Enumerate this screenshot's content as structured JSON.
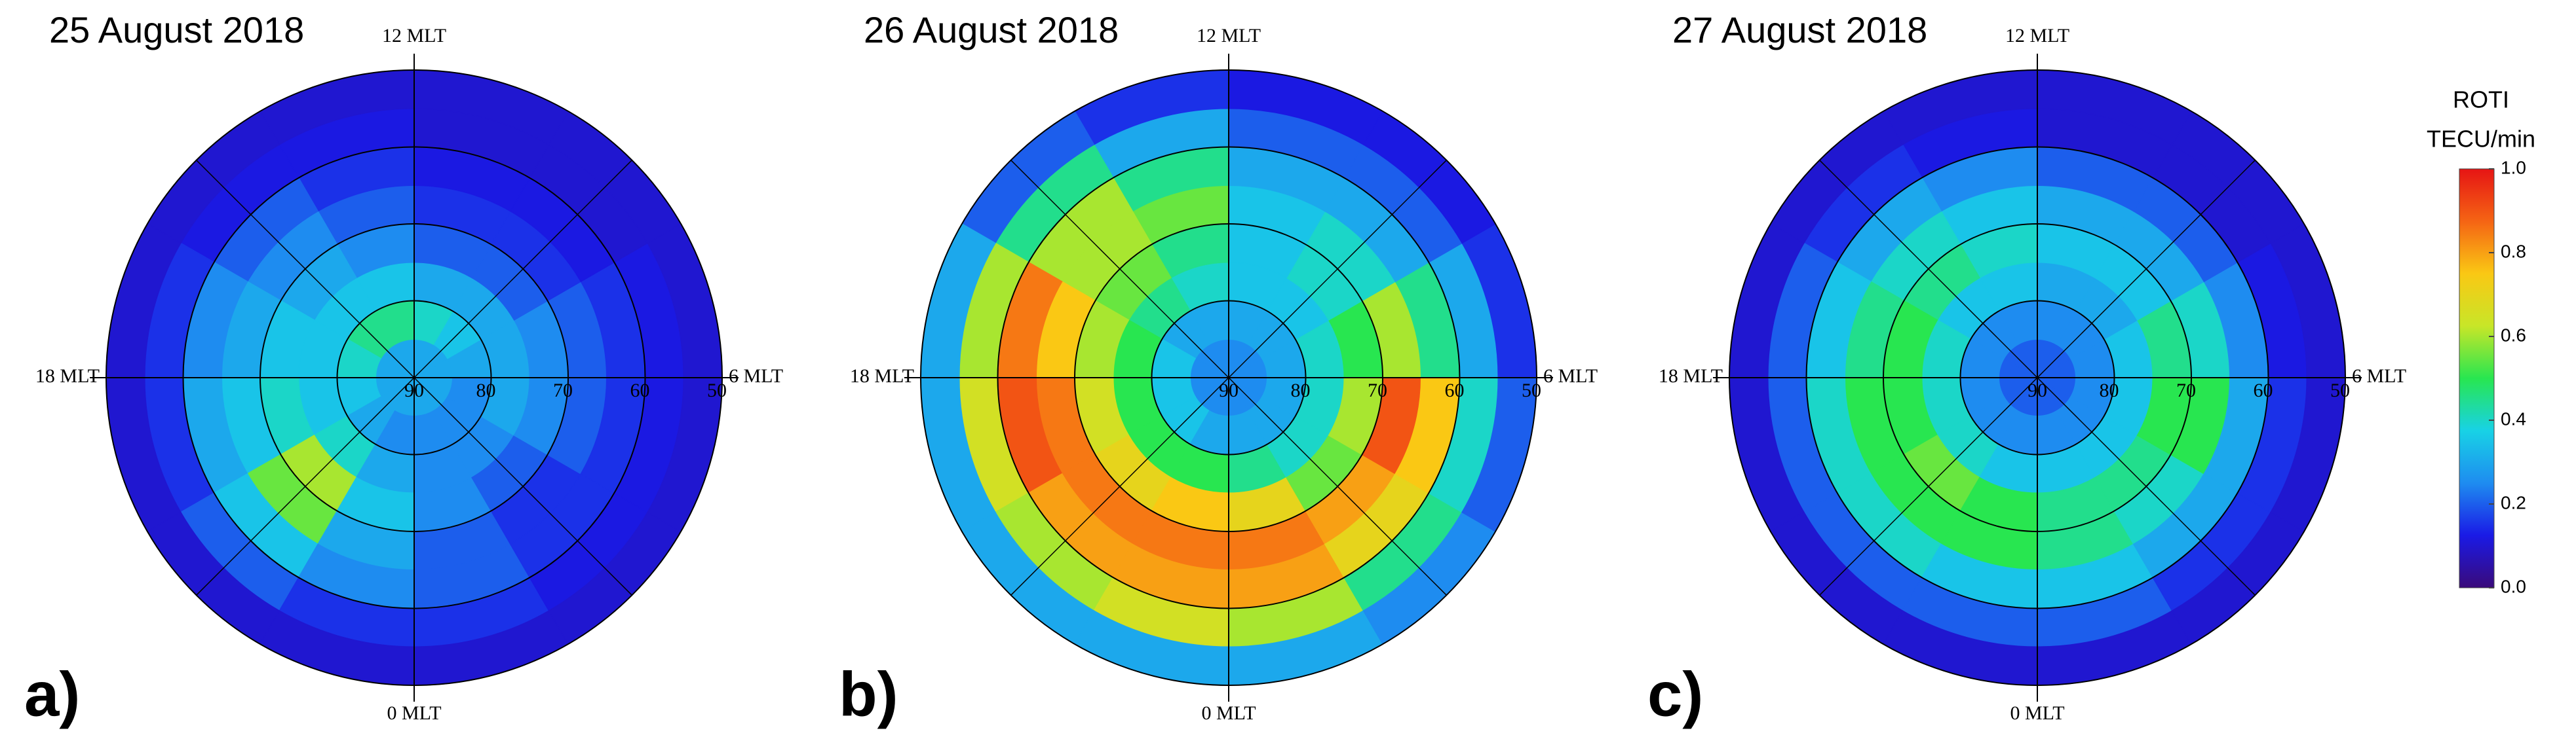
{
  "chart_data": [
    {
      "type": "polar-heatmap",
      "title": "25 August 2018",
      "label": "a)",
      "rlim": [
        90,
        50
      ],
      "rticks": [
        90,
        80,
        70,
        60,
        50
      ],
      "thetaticks": [
        {
          "value": 0,
          "label": "0 MLT"
        },
        {
          "value": 6,
          "label": "6 MLT"
        },
        {
          "value": 12,
          "label": "12 MLT"
        },
        {
          "value": 18,
          "label": "18 MLT"
        }
      ],
      "lat_bins": [
        90,
        85,
        80,
        75,
        70,
        65,
        60,
        55,
        50
      ],
      "mlt_bins": [
        0,
        2,
        4,
        6,
        8,
        10,
        12,
        14,
        16,
        18,
        20,
        22,
        24
      ],
      "values": [
        [
          0.3,
          0.3,
          0.3,
          0.3,
          0.3,
          0.3,
          0.3,
          0.3,
          0.3,
          0.3,
          0.3,
          0.3
        ],
        [
          0.25,
          0.25,
          0.25,
          0.3,
          0.35,
          0.4,
          0.45,
          0.45,
          0.4,
          0.35,
          0.3,
          0.25
        ],
        [
          0.25,
          0.25,
          0.3,
          0.3,
          0.3,
          0.3,
          0.35,
          0.35,
          0.35,
          0.35,
          0.4,
          0.3
        ],
        [
          0.25,
          0.2,
          0.25,
          0.25,
          0.2,
          0.2,
          0.25,
          0.3,
          0.35,
          0.4,
          0.6,
          0.35
        ],
        [
          0.2,
          0.15,
          0.2,
          0.2,
          0.15,
          0.15,
          0.2,
          0.25,
          0.3,
          0.35,
          0.55,
          0.3
        ],
        [
          0.2,
          0.15,
          0.15,
          0.15,
          0.12,
          0.12,
          0.15,
          0.2,
          0.25,
          0.3,
          0.35,
          0.25
        ],
        [
          0.15,
          0.12,
          0.12,
          0.12,
          0.1,
          0.1,
          0.12,
          0.12,
          0.15,
          0.15,
          0.2,
          0.15
        ],
        [
          0.1,
          0.1,
          0.1,
          0.1,
          0.1,
          0.1,
          0.1,
          0.1,
          0.1,
          0.1,
          0.1,
          0.1
        ]
      ]
    },
    {
      "type": "polar-heatmap",
      "title": "26 August 2018",
      "label": "b)",
      "rlim": [
        90,
        50
      ],
      "rticks": [
        90,
        80,
        70,
        60,
        50
      ],
      "thetaticks": [
        {
          "value": 0,
          "label": "0 MLT"
        },
        {
          "value": 6,
          "label": "6 MLT"
        },
        {
          "value": 12,
          "label": "12 MLT"
        },
        {
          "value": 18,
          "label": "18 MLT"
        }
      ],
      "lat_bins": [
        90,
        85,
        80,
        75,
        70,
        65,
        60,
        55,
        50
      ],
      "mlt_bins": [
        0,
        2,
        4,
        6,
        8,
        10,
        12,
        14,
        16,
        18,
        20,
        22,
        24
      ],
      "values": [
        [
          0.25,
          0.25,
          0.25,
          0.25,
          0.25,
          0.25,
          0.25,
          0.25,
          0.25,
          0.25,
          0.25,
          0.25
        ],
        [
          0.3,
          0.3,
          0.3,
          0.3,
          0.3,
          0.3,
          0.3,
          0.3,
          0.35,
          0.35,
          0.35,
          0.3
        ],
        [
          0.45,
          0.4,
          0.4,
          0.4,
          0.35,
          0.35,
          0.4,
          0.45,
          0.5,
          0.5,
          0.5,
          0.5
        ],
        [
          0.7,
          0.55,
          0.6,
          0.5,
          0.4,
          0.35,
          0.45,
          0.55,
          0.6,
          0.65,
          0.7,
          0.75
        ],
        [
          0.85,
          0.8,
          0.9,
          0.6,
          0.4,
          0.35,
          0.55,
          0.6,
          0.75,
          0.85,
          0.85,
          0.85
        ],
        [
          0.8,
          0.7,
          0.75,
          0.45,
          0.3,
          0.3,
          0.45,
          0.6,
          0.85,
          0.9,
          0.8,
          0.8
        ],
        [
          0.6,
          0.45,
          0.4,
          0.3,
          0.2,
          0.2,
          0.3,
          0.45,
          0.6,
          0.65,
          0.6,
          0.65
        ],
        [
          0.3,
          0.25,
          0.2,
          0.15,
          0.12,
          0.12,
          0.15,
          0.2,
          0.3,
          0.3,
          0.3,
          0.3
        ]
      ]
    },
    {
      "type": "polar-heatmap",
      "title": "27 August 2018",
      "label": "c)",
      "rlim": [
        90,
        50
      ],
      "rticks": [
        90,
        80,
        70,
        60,
        50
      ],
      "thetaticks": [
        {
          "value": 0,
          "label": "0 MLT"
        },
        {
          "value": 6,
          "label": "6 MLT"
        },
        {
          "value": 12,
          "label": "12 MLT"
        },
        {
          "value": 18,
          "label": "18 MLT"
        }
      ],
      "lat_bins": [
        90,
        85,
        80,
        75,
        70,
        65,
        60,
        55,
        50
      ],
      "mlt_bins": [
        0,
        2,
        4,
        6,
        8,
        10,
        12,
        14,
        16,
        18,
        20,
        22,
        24
      ],
      "values": [
        [
          0.2,
          0.2,
          0.2,
          0.2,
          0.2,
          0.2,
          0.2,
          0.2,
          0.2,
          0.2,
          0.2,
          0.2
        ],
        [
          0.25,
          0.25,
          0.25,
          0.25,
          0.25,
          0.25,
          0.25,
          0.25,
          0.25,
          0.25,
          0.25,
          0.25
        ],
        [
          0.35,
          0.35,
          0.35,
          0.35,
          0.3,
          0.3,
          0.35,
          0.35,
          0.4,
          0.4,
          0.4,
          0.35
        ],
        [
          0.45,
          0.45,
          0.5,
          0.45,
          0.35,
          0.35,
          0.4,
          0.45,
          0.5,
          0.5,
          0.55,
          0.5
        ],
        [
          0.45,
          0.4,
          0.5,
          0.4,
          0.3,
          0.3,
          0.35,
          0.4,
          0.45,
          0.5,
          0.5,
          0.5
        ],
        [
          0.35,
          0.3,
          0.3,
          0.25,
          0.2,
          0.2,
          0.25,
          0.3,
          0.35,
          0.4,
          0.4,
          0.35
        ],
        [
          0.2,
          0.15,
          0.15,
          0.12,
          0.1,
          0.1,
          0.12,
          0.15,
          0.2,
          0.2,
          0.2,
          0.2
        ],
        [
          0.1,
          0.1,
          0.1,
          0.1,
          0.1,
          0.1,
          0.1,
          0.1,
          0.1,
          0.1,
          0.1,
          0.1
        ]
      ]
    }
  ],
  "colorbar": {
    "title": "ROTI",
    "unit": "TECU/min",
    "zlim": [
      0,
      1
    ],
    "zticks": [
      {
        "value": 0,
        "label": "0.0"
      },
      0.2,
      0.4,
      0.6,
      0.8,
      {
        "value": 1,
        "label": "1.0"
      }
    ],
    "colorscale": [
      "#3a0a7a",
      "#1a1ae6",
      "#1e8cf0",
      "#18d2e6",
      "#28e650",
      "#c8e628",
      "#fac814",
      "#f56414",
      "#e61414"
    ]
  }
}
